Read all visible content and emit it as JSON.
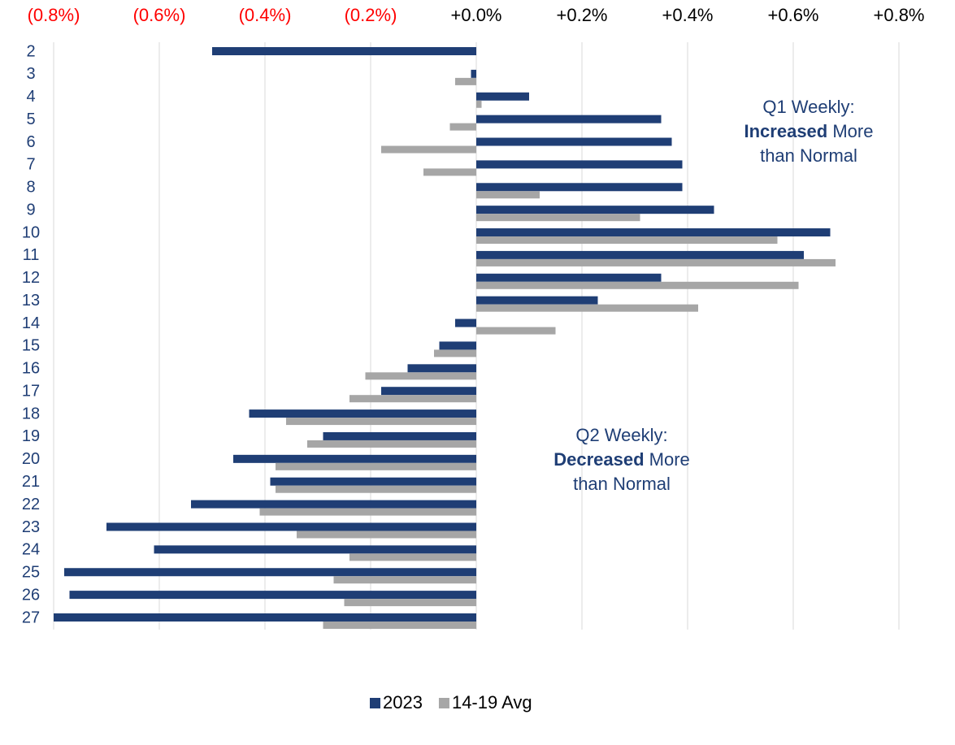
{
  "chart_data": {
    "type": "bar",
    "orientation": "horizontal",
    "categories": [
      "2",
      "3",
      "4",
      "5",
      "6",
      "7",
      "8",
      "9",
      "10",
      "11",
      "12",
      "13",
      "14",
      "15",
      "16",
      "17",
      "18",
      "19",
      "20",
      "21",
      "22",
      "23",
      "24",
      "25",
      "26",
      "27"
    ],
    "series": [
      {
        "name": "2023",
        "color": "#1f3e75",
        "values": [
          -0.5,
          -0.01,
          0.1,
          0.35,
          0.37,
          0.39,
          0.39,
          0.45,
          0.67,
          0.62,
          0.35,
          0.23,
          -0.04,
          -0.07,
          -0.13,
          -0.18,
          -0.43,
          -0.29,
          -0.46,
          -0.39,
          -0.54,
          -0.7,
          -0.61,
          -0.78,
          -0.77,
          -0.8
        ]
      },
      {
        "name": "14-19 Avg",
        "color": "#a6a6a6",
        "values": [
          0.0,
          -0.04,
          0.01,
          -0.05,
          -0.18,
          -0.1,
          0.12,
          0.31,
          0.57,
          0.68,
          0.61,
          0.42,
          0.15,
          -0.08,
          -0.21,
          -0.24,
          -0.36,
          -0.32,
          -0.38,
          -0.38,
          -0.41,
          -0.34,
          -0.24,
          -0.27,
          -0.25,
          -0.29
        ]
      }
    ],
    "xlim": [
      -0.8,
      0.8
    ],
    "xticks": [
      {
        "value": -0.8,
        "label": "(0.8%)"
      },
      {
        "value": -0.6,
        "label": "(0.6%)"
      },
      {
        "value": -0.4,
        "label": "(0.4%)"
      },
      {
        "value": -0.2,
        "label": "(0.2%)"
      },
      {
        "value": 0,
        "label": "+0.0%"
      },
      {
        "value": 0.2,
        "label": "+0.2%"
      },
      {
        "value": 0.4,
        "label": "+0.4%"
      },
      {
        "value": 0.6,
        "label": "+0.6%"
      },
      {
        "value": 0.8,
        "label": "+0.8%"
      }
    ],
    "negative_tick_color": "#ff0000",
    "grid": true,
    "legend": "bottom",
    "annotations": [
      {
        "line1": "Q1 Weekly:",
        "bold": "Increased",
        "rest": "More",
        "line3": "than Normal"
      },
      {
        "line1": "Q2 Weekly:",
        "bold": "Decreased",
        "rest": "More",
        "line3": "than Normal"
      }
    ]
  }
}
